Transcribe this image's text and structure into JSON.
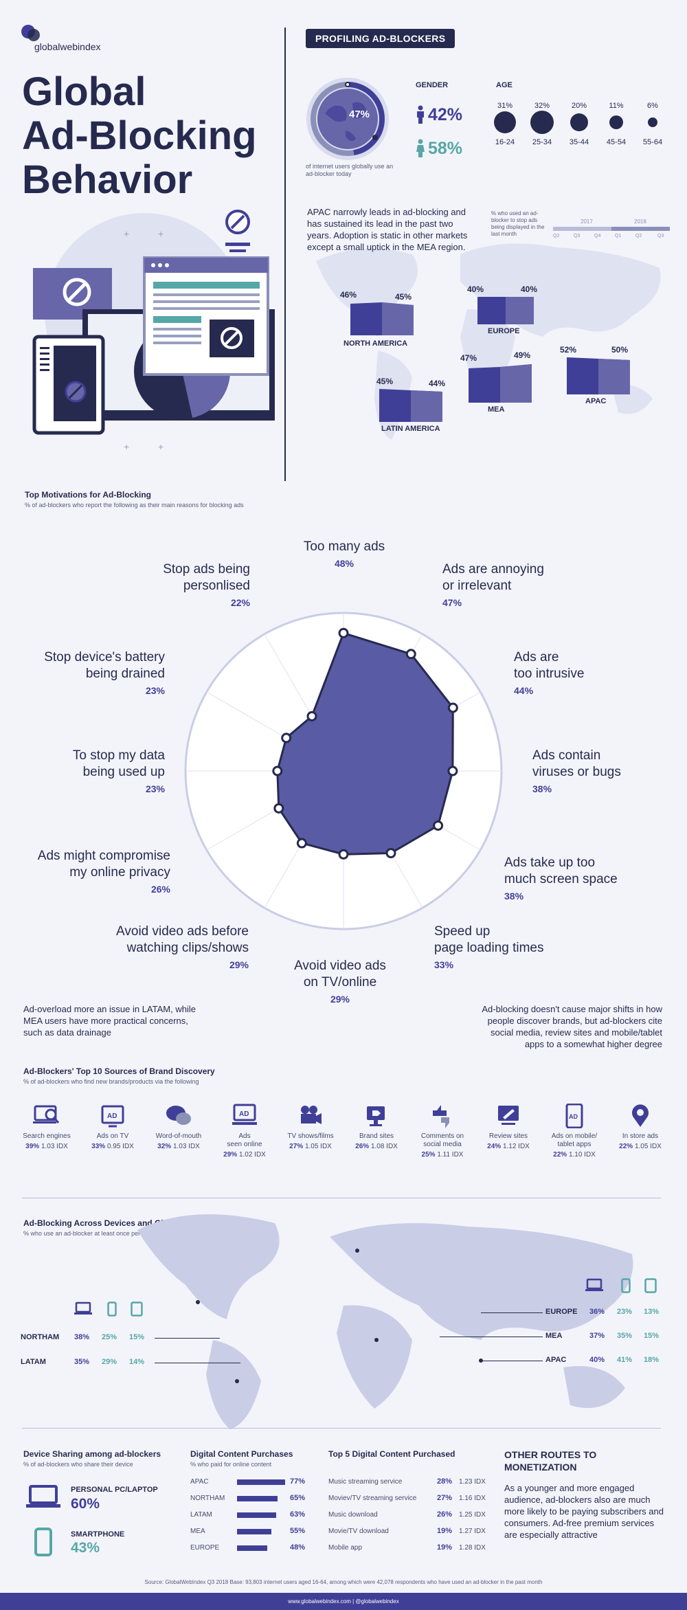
{
  "brand": {
    "logo_text": "globalwebindex"
  },
  "hero": {
    "title_line1": "Global",
    "title_line2": "Ad-Blocking",
    "title_line3": "Behavior"
  },
  "profile": {
    "pill": "PROFILING AD-BLOCKERS",
    "globe_pct": "47%",
    "globe_caption": "of internet users globally use an ad-blocker today",
    "gender_label": "GENDER",
    "male_pct": "42%",
    "female_pct": "58%",
    "age_label": "AGE",
    "age_groups": [
      {
        "label": "16-24",
        "pct": "31%",
        "value": 31
      },
      {
        "label": "25-34",
        "pct": "32%",
        "value": 32
      },
      {
        "label": "35-44",
        "pct": "20%",
        "value": 20
      },
      {
        "label": "45-54",
        "pct": "11%",
        "value": 11
      },
      {
        "label": "55-64",
        "pct": "6%",
        "value": 6
      }
    ]
  },
  "regions_intro": "APAC narrowly leads in ad-blocking and has sustained its lead in the past two years. Adoption is static in other markets except a small uptick in the MEA region.",
  "regions_legend": {
    "caption": "% who used an ad-blocker to stop ads being displayed in the last month",
    "year1": "2017",
    "year2": "2018",
    "quarters": [
      "Q2",
      "Q3",
      "Q4",
      "Q1",
      "Q2",
      "Q3"
    ]
  },
  "regions": [
    {
      "name": "NORTH AMERICA",
      "start": "46%",
      "end": "45%"
    },
    {
      "name": "EUROPE",
      "start": "40%",
      "end": "40%"
    },
    {
      "name": "MEA",
      "start": "47%",
      "end": "49%"
    },
    {
      "name": "APAC",
      "start": "52%",
      "end": "50%"
    },
    {
      "name": "LATIN AMERICA",
      "start": "45%",
      "end": "44%"
    }
  ],
  "motivations": {
    "title": "Top Motivations for Ad-Blocking",
    "subtitle": "% of ad-blockers who report the following as their main reasons for blocking ads"
  },
  "chart_data": {
    "type": "radar",
    "title": "Top Motivations for Ad-Blocking",
    "categories": [
      "Too many ads",
      "Ads are annoying or irrelevant",
      "Ads are too intrusive",
      "Ads contain viruses or bugs",
      "Ads take up too much screen space",
      "Speed up page loading times",
      "Avoid video ads on TV/online",
      "Avoid video ads before watching clips/shows",
      "Ads might compromise my online privacy",
      "To stop my data being used up",
      "Stop device's battery being drained",
      "Stop ads being personlised"
    ],
    "values": [
      48,
      47,
      44,
      38,
      38,
      33,
      29,
      29,
      26,
      23,
      23,
      22
    ],
    "value_labels": [
      "48%",
      "47%",
      "44%",
      "38%",
      "38%",
      "33%",
      "29%",
      "29%",
      "26%",
      "23%",
      "23%",
      "22%"
    ],
    "rmax": 55,
    "grid": true,
    "series_color": "#5a5ba5"
  },
  "radar_labels": [
    {
      "line1": "Too many ads",
      "line2": "",
      "val": "48%"
    },
    {
      "line1": "Ads are annoying",
      "line2": "or irrelevant",
      "val": "47%"
    },
    {
      "line1": "Ads are",
      "line2": "too intrusive",
      "val": "44%"
    },
    {
      "line1": "Ads contain",
      "line2": "viruses or bugs",
      "val": "38%"
    },
    {
      "line1": "Ads take up too",
      "line2": "much screen space",
      "val": "38%"
    },
    {
      "line1": "Speed up",
      "line2": "page loading times",
      "val": "33%"
    },
    {
      "line1": "Avoid video ads",
      "line2": "on TV/online",
      "val": "29%"
    },
    {
      "line1": "Avoid video ads before",
      "line2": "watching clips/shows",
      "val": "29%"
    },
    {
      "line1": "Ads might compromise",
      "line2": "my online privacy",
      "val": "26%"
    },
    {
      "line1": "To stop my data",
      "line2": "being used up",
      "val": "23%"
    },
    {
      "line1": "Stop device's battery",
      "line2": "being drained",
      "val": "23%"
    },
    {
      "line1": "Stop ads being",
      "line2": "personlised",
      "val": "22%"
    }
  ],
  "notes": {
    "left": "Ad-overload more an issue in LATAM, while MEA users have more practical concerns, such as data drainage",
    "right": "Ad-blocking doesn't cause major shifts in how people discover brands, but ad-blockers cite social media, review sites and mobile/tablet apps to a somewhat higher degree"
  },
  "discovery": {
    "title": "Ad-Blockers' Top 10 Sources of Brand Discovery",
    "subtitle": "% of ad-blockers who find new brands/products via the following",
    "items": [
      {
        "label1": "Search engines",
        "label2": "",
        "pct": "39%",
        "idx": "1.03 IDX",
        "icon": "search-icon"
      },
      {
        "label1": "Ads on TV",
        "label2": "",
        "pct": "33%",
        "idx": "0.95 IDX",
        "icon": "tv-ad-icon"
      },
      {
        "label1": "Word-of-mouth",
        "label2": "",
        "pct": "32%",
        "idx": "1.03 IDX",
        "icon": "chat-icon"
      },
      {
        "label1": "Ads",
        "label2": "seen online",
        "pct": "29%",
        "idx": "1.02 IDX",
        "icon": "online-ad-icon"
      },
      {
        "label1": "TV shows/films",
        "label2": "",
        "pct": "27%",
        "idx": "1.05 IDX",
        "icon": "camera-icon"
      },
      {
        "label1": "Brand sites",
        "label2": "",
        "pct": "26%",
        "idx": "1.08 IDX",
        "icon": "tag-icon"
      },
      {
        "label1": "Comments on",
        "label2": "social media",
        "pct": "25%",
        "idx": "1.11 IDX",
        "icon": "thumbs-icon"
      },
      {
        "label1": "Review sites",
        "label2": "",
        "pct": "24%",
        "idx": "1.12 IDX",
        "icon": "review-icon"
      },
      {
        "label1": "Ads on mobile/",
        "label2": "tablet apps",
        "pct": "22%",
        "idx": "1.10 IDX",
        "icon": "mobile-ad-icon"
      },
      {
        "label1": "In store ads",
        "label2": "",
        "pct": "22%",
        "idx": "1.05 IDX",
        "icon": "store-pin-icon"
      }
    ]
  },
  "devices": {
    "title": "Ad-Blocking Across Devices and Global Regions",
    "subtitle": "% who use an ad-blocker at least once per month",
    "rows": [
      {
        "region": "NORTHAM",
        "laptop": "38%",
        "phone": "25%",
        "tablet": "15%"
      },
      {
        "region": "LATAM",
        "laptop": "35%",
        "phone": "29%",
        "tablet": "14%"
      },
      {
        "region": "EUROPE",
        "laptop": "36%",
        "phone": "23%",
        "tablet": "13%"
      },
      {
        "region": "MEA",
        "laptop": "37%",
        "phone": "35%",
        "tablet": "15%"
      },
      {
        "region": "APAC",
        "laptop": "40%",
        "phone": "41%",
        "tablet": "18%"
      }
    ]
  },
  "sharing": {
    "title": "Device Sharing among ad-blockers",
    "subtitle": "% of ad-blockers who share their device",
    "pc_label": "PERSONAL PC/LAPTOP",
    "pc_pct": "60%",
    "phone_label": "SMARTPHONE",
    "phone_pct": "43%"
  },
  "purchases": {
    "title": "Digital Content Purchases",
    "subtitle": "% who paid for online content",
    "rows": [
      {
        "region": "APAC",
        "pct": "77%",
        "value": 77
      },
      {
        "region": "NORTHAM",
        "pct": "65%",
        "value": 65
      },
      {
        "region": "LATAM",
        "pct": "63%",
        "value": 63
      },
      {
        "region": "MEA",
        "pct": "55%",
        "value": 55
      },
      {
        "region": "EUROPE",
        "pct": "48%",
        "value": 48
      }
    ]
  },
  "top5": {
    "title": "Top 5 Digital Content Purchased",
    "rows": [
      {
        "item": "Music streaming service",
        "pct": "28%",
        "idx": "1.23 IDX"
      },
      {
        "item": "Moviev/TV streaming service",
        "pct": "27%",
        "idx": "1.16 IDX"
      },
      {
        "item": "Music download",
        "pct": "26%",
        "idx": "1.25 IDX"
      },
      {
        "item": "Movie/TV download",
        "pct": "19%",
        "idx": "1.27 IDX"
      },
      {
        "item": "Mobile app",
        "pct": "19%",
        "idx": "1.28 IDX"
      }
    ]
  },
  "routes": {
    "title1": "OTHER ROUTES TO",
    "title2": "MONETIZATION",
    "body": "As a younger and more engaged audience, ad-blockers also are much more likely to be paying subscribers and consumers. Ad-free premium services are especially attractive"
  },
  "source": "Source: GlobalWebIndex Q3 2018 Base: 93,803 internet users aged 16-64, among which were 42,078 respondents who have used an ad-blocker in the past month",
  "footer": "www.globalwebindex.com  |  @globalwebindex"
}
